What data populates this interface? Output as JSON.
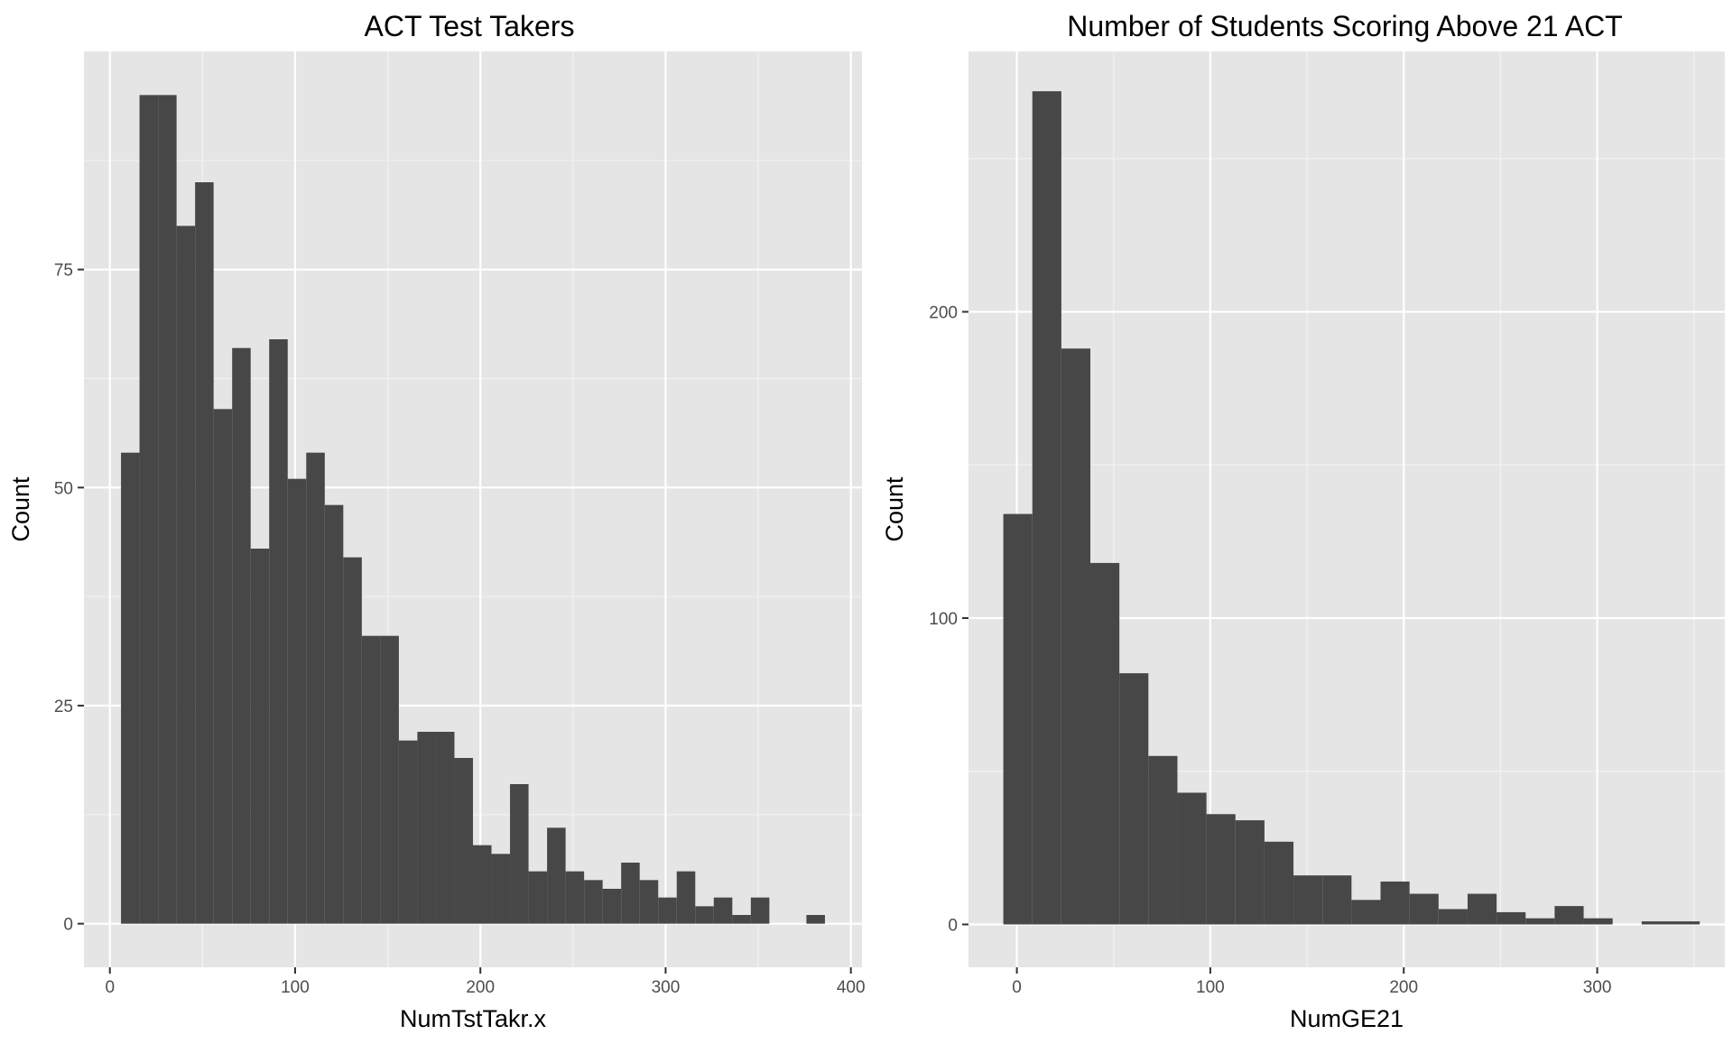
{
  "chart_data": [
    {
      "type": "bar",
      "title": "ACT Test Takers",
      "xlabel": "NumTstTakr.x",
      "ylabel": "Count",
      "xlim": [
        -14,
        406
      ],
      "ylim": [
        -5,
        100
      ],
      "x_breaks": [
        0,
        100,
        200,
        300,
        400
      ],
      "x_tick_labels": [
        "0",
        "100",
        "200",
        "300",
        "400"
      ],
      "y_breaks": [
        0,
        25,
        50,
        75
      ],
      "y_tick_labels": [
        "0",
        "25",
        "50",
        "75"
      ],
      "bin_width": 10,
      "bins": [
        {
          "start": 6,
          "count": 54
        },
        {
          "start": 16,
          "count": 95
        },
        {
          "start": 26,
          "count": 95
        },
        {
          "start": 36,
          "count": 80
        },
        {
          "start": 46,
          "count": 85
        },
        {
          "start": 56,
          "count": 59
        },
        {
          "start": 66,
          "count": 66
        },
        {
          "start": 76,
          "count": 43
        },
        {
          "start": 86,
          "count": 67
        },
        {
          "start": 96,
          "count": 51
        },
        {
          "start": 106,
          "count": 54
        },
        {
          "start": 116,
          "count": 48
        },
        {
          "start": 126,
          "count": 42
        },
        {
          "start": 136,
          "count": 33
        },
        {
          "start": 146,
          "count": 33
        },
        {
          "start": 156,
          "count": 21
        },
        {
          "start": 166,
          "count": 22
        },
        {
          "start": 176,
          "count": 22
        },
        {
          "start": 186,
          "count": 19
        },
        {
          "start": 196,
          "count": 9
        },
        {
          "start": 206,
          "count": 8
        },
        {
          "start": 216,
          "count": 16
        },
        {
          "start": 226,
          "count": 6
        },
        {
          "start": 236,
          "count": 11
        },
        {
          "start": 246,
          "count": 6
        },
        {
          "start": 256,
          "count": 5
        },
        {
          "start": 266,
          "count": 4
        },
        {
          "start": 276,
          "count": 7
        },
        {
          "start": 286,
          "count": 5
        },
        {
          "start": 296,
          "count": 3
        },
        {
          "start": 306,
          "count": 6
        },
        {
          "start": 316,
          "count": 2
        },
        {
          "start": 326,
          "count": 3
        },
        {
          "start": 336,
          "count": 1
        },
        {
          "start": 346,
          "count": 3
        },
        {
          "start": 356,
          "count": 0
        },
        {
          "start": 366,
          "count": 0
        },
        {
          "start": 376,
          "count": 1
        }
      ]
    },
    {
      "type": "bar",
      "title": "Number of Students Scoring Above 21 ACT",
      "xlabel": "NumGE21",
      "ylabel": "Count",
      "xlim": [
        -25,
        366
      ],
      "ylim": [
        -14,
        285
      ],
      "x_breaks": [
        0,
        100,
        200,
        300
      ],
      "x_tick_labels": [
        "0",
        "100",
        "200",
        "300"
      ],
      "y_breaks": [
        0,
        100,
        200
      ],
      "y_tick_labels": [
        "0",
        "100",
        "200"
      ],
      "bin_width": 15,
      "bins": [
        {
          "start": -7,
          "count": 134
        },
        {
          "start": 8,
          "count": 272
        },
        {
          "start": 23,
          "count": 188
        },
        {
          "start": 38,
          "count": 118
        },
        {
          "start": 53,
          "count": 82
        },
        {
          "start": 68,
          "count": 55
        },
        {
          "start": 83,
          "count": 43
        },
        {
          "start": 98,
          "count": 36
        },
        {
          "start": 113,
          "count": 34
        },
        {
          "start": 128,
          "count": 27
        },
        {
          "start": 143,
          "count": 16
        },
        {
          "start": 158,
          "count": 16
        },
        {
          "start": 173,
          "count": 8
        },
        {
          "start": 188,
          "count": 14
        },
        {
          "start": 203,
          "count": 10
        },
        {
          "start": 218,
          "count": 5
        },
        {
          "start": 233,
          "count": 10
        },
        {
          "start": 248,
          "count": 4
        },
        {
          "start": 263,
          "count": 2
        },
        {
          "start": 278,
          "count": 6
        },
        {
          "start": 293,
          "count": 2
        },
        {
          "start": 308,
          "count": 0
        },
        {
          "start": 323,
          "count": 1
        },
        {
          "start": 338,
          "count": 1
        }
      ]
    }
  ]
}
